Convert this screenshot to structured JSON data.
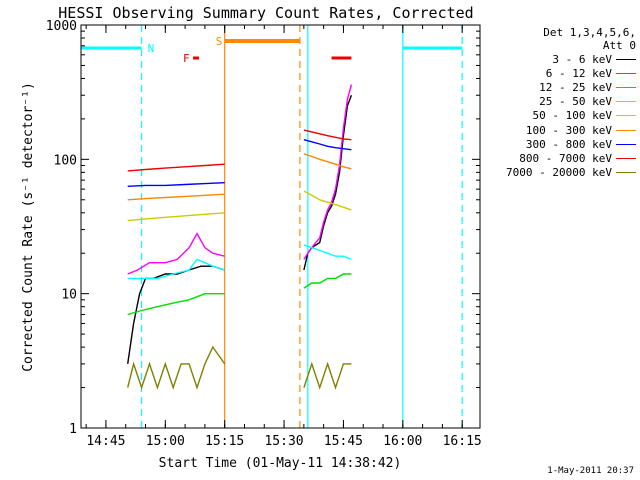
{
  "chart_data": {
    "type": "line",
    "title": "HESSI Observing Summary Count Rates, Corrected",
    "xlabel": "Start Time (01-May-11 14:38:42)",
    "ylabel": "Corrected Count Rate (s⁻¹ detector⁻¹)",
    "y_scale": "log",
    "ylim": [
      1,
      1000
    ],
    "xlim_minutes": [
      38.7,
      139.5
    ],
    "x_ticks": [
      {
        "label": "14:45",
        "m": 45
      },
      {
        "label": "15:00",
        "m": 60
      },
      {
        "label": "15:15",
        "m": 75
      },
      {
        "label": "15:30",
        "m": 90
      },
      {
        "label": "15:45",
        "m": 105
      },
      {
        "label": "16:00",
        "m": 120
      },
      {
        "label": "16:15",
        "m": 135
      }
    ],
    "y_ticks": [
      {
        "label": "1",
        "v": 1
      },
      {
        "label": "10",
        "v": 10
      },
      {
        "label": "100",
        "v": 100
      },
      {
        "label": "1000",
        "v": 1000
      }
    ],
    "legend_header": [
      "Det 1,3,4,5,6,",
      "Att 0"
    ],
    "series": [
      {
        "name": "3 - 6 keV",
        "color": "#000000",
        "segments": [
          {
            "x": [
              50.5,
              52,
              53.5,
              55,
              57,
              60,
              63,
              66,
              69,
              72,
              75
            ],
            "y": [
              3,
              6,
              10,
              13,
              13,
              14,
              14,
              15,
              16,
              16,
              15
            ]
          },
          {
            "x": [
              95,
              96,
              97,
              98,
              99,
              100,
              101,
              102,
              103,
              104,
              105,
              106,
              107
            ],
            "y": [
              15,
              20,
              22,
              23,
              24,
              32,
              40,
              45,
              55,
              80,
              150,
              250,
              300
            ]
          }
        ]
      },
      {
        "name": "6 - 12 keV",
        "color": "#ff00ff",
        "segments": [
          {
            "x": [
              50.5,
              53,
              56,
              60,
              63,
              66,
              68,
              70,
              72,
              75
            ],
            "y": [
              14,
              15,
              17,
              17,
              18,
              22,
              28,
              22,
              20,
              19
            ]
          },
          {
            "x": [
              95,
              96,
              97,
              98,
              99,
              100,
              101,
              102,
              103,
              104,
              105,
              106,
              107
            ],
            "y": [
              18,
              20,
              22,
              24,
              26,
              34,
              42,
              48,
              60,
              90,
              170,
              280,
              360
            ]
          }
        ]
      },
      {
        "name": "12 - 25 keV",
        "color": "#00dd00",
        "segments": [
          {
            "x": [
              50.5,
              54,
              58,
              62,
              66,
              70,
              75
            ],
            "y": [
              7,
              7.5,
              8,
              8.5,
              9,
              10,
              10
            ]
          },
          {
            "x": [
              95,
              97,
              99,
              101,
              103,
              105,
              107
            ],
            "y": [
              11,
              12,
              12,
              13,
              13,
              14,
              14
            ]
          }
        ]
      },
      {
        "name": "25 - 50 keV",
        "color": "#00ffff",
        "segments": [
          {
            "x": [
              50.5,
              54,
              58,
              62,
              66,
              68,
              70,
              72,
              75
            ],
            "y": [
              13,
              13,
              13,
              14,
              15,
              18,
              17,
              16,
              15
            ]
          },
          {
            "x": [
              95,
              97,
              99,
              101,
              103,
              105,
              107
            ],
            "y": [
              23,
              22,
              21,
              20,
              19,
              19,
              18
            ]
          }
        ]
      },
      {
        "name": "50 - 100 keV",
        "color": "#cccc00",
        "segments": [
          {
            "x": [
              50.5,
              55,
              60,
              65,
              70,
              75
            ],
            "y": [
              35,
              36,
              37,
              38,
              39,
              40
            ]
          },
          {
            "x": [
              95,
              97,
              99,
              101,
              103,
              105,
              107
            ],
            "y": [
              58,
              54,
              50,
              48,
              46,
              44,
              42
            ]
          }
        ]
      },
      {
        "name": "100 - 300 keV",
        "color": "#ff8800",
        "segments": [
          {
            "x": [
              50.5,
              55,
              60,
              65,
              70,
              75
            ],
            "y": [
              50,
              51,
              52,
              53,
              54,
              55
            ]
          },
          {
            "x": [
              95,
              97,
              99,
              101,
              103,
              105,
              107
            ],
            "y": [
              110,
              105,
              100,
              96,
              92,
              88,
              85
            ]
          }
        ]
      },
      {
        "name": "300 - 800 keV",
        "color": "#0000ff",
        "segments": [
          {
            "x": [
              50.5,
              55,
              60,
              65,
              70,
              75
            ],
            "y": [
              63,
              64,
              64,
              65,
              66,
              67
            ]
          },
          {
            "x": [
              95,
              97,
              99,
              101,
              103,
              105,
              107
            ],
            "y": [
              140,
              135,
              130,
              125,
              122,
              120,
              118
            ]
          }
        ]
      },
      {
        "name": "800 - 7000 keV",
        "color": "#ee0000",
        "segments": [
          {
            "x": [
              50.5,
              55,
              60,
              65,
              70,
              75
            ],
            "y": [
              82,
              84,
              86,
              88,
              90,
              92
            ]
          },
          {
            "x": [
              95,
              97,
              99,
              101,
              103,
              105,
              107
            ],
            "y": [
              165,
              160,
              155,
              150,
              146,
              142,
              140
            ]
          }
        ]
      },
      {
        "name": "7000 - 20000 keV",
        "color": "#808000",
        "segments": [
          {
            "x": [
              50.5,
              52,
              54,
              56,
              58,
              60,
              62,
              64,
              66,
              68,
              70,
              72,
              75
            ],
            "y": [
              2,
              3,
              2,
              3,
              2,
              3,
              2,
              3,
              3,
              2,
              3,
              4,
              3
            ]
          },
          {
            "x": [
              95,
              97,
              99,
              101,
              103,
              105,
              107
            ],
            "y": [
              2,
              3,
              2,
              3,
              2,
              3,
              3
            ]
          }
        ]
      }
    ],
    "night_bars": [
      {
        "label": "N",
        "x": [
          38.7,
          54
        ],
        "color": "#00ffff"
      },
      {
        "label": "",
        "x": [
          120,
          135
        ],
        "color": "#00ffff"
      }
    ],
    "saa_bar": {
      "label": "S",
      "x": [
        75,
        94
      ],
      "color": "#ff8800"
    },
    "flare_bars": [
      {
        "label": "F",
        "x": [
          67,
          68.5
        ],
        "color": "#ee0000"
      },
      {
        "label": "",
        "x": [
          102,
          107
        ],
        "color": "#ee0000"
      }
    ],
    "vlines": [
      {
        "m": 54,
        "color": "#00ffff",
        "dash": true
      },
      {
        "m": 75,
        "color": "#ff8800",
        "dash": false
      },
      {
        "m": 94,
        "color": "#ff8800",
        "dash": true
      },
      {
        "m": 96,
        "color": "#00ffff",
        "dash": false
      },
      {
        "m": 120,
        "color": "#00ffff",
        "dash": false
      },
      {
        "m": 135,
        "color": "#00ffff",
        "dash": true
      }
    ]
  },
  "timestamp": "1-May-2011 20:37"
}
